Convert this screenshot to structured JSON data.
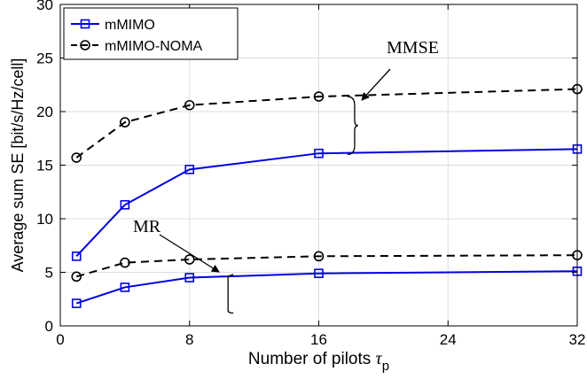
{
  "chart_data": {
    "type": "line",
    "xlabel": "Number of pilots",
    "xlabel_symbol": "τ",
    "xlabel_subscript": "p",
    "ylabel": "Average sum SE [bit/s/Hz/cell]",
    "xlim": [
      0,
      32
    ],
    "ylim": [
      0,
      30
    ],
    "xticks": [
      0,
      8,
      16,
      24,
      32
    ],
    "yticks": [
      0,
      5,
      10,
      15,
      20,
      25,
      30
    ],
    "grid": true,
    "legend_position": "top-left",
    "x": [
      1,
      4,
      8,
      16,
      32
    ],
    "series": [
      {
        "name": "mMIMO",
        "group": "MMSE",
        "values": [
          6.5,
          11.3,
          14.6,
          16.1,
          16.5
        ],
        "color": "#0000e0",
        "dash": "solid",
        "marker": "square"
      },
      {
        "name": "mMIMO-NOMA",
        "group": "MMSE",
        "values": [
          15.7,
          19.0,
          20.6,
          21.4,
          22.1
        ],
        "color": "#000000",
        "dash": "dashed",
        "marker": "circle"
      },
      {
        "name": "mMIMO",
        "group": "MR",
        "values": [
          2.1,
          3.6,
          4.5,
          4.9,
          5.1
        ],
        "color": "#0000e0",
        "dash": "solid",
        "marker": "square"
      },
      {
        "name": "mMIMO-NOMA",
        "group": "MR",
        "values": [
          4.6,
          5.9,
          6.2,
          6.5,
          6.6
        ],
        "color": "#000000",
        "dash": "dashed",
        "marker": "circle"
      }
    ],
    "legend": [
      {
        "label": "mMIMO",
        "color": "#0000e0",
        "dash": "solid",
        "marker": "square"
      },
      {
        "label": "mMIMO-NOMA",
        "color": "#000000",
        "dash": "dashed",
        "marker": "circle"
      }
    ],
    "annotations": [
      {
        "text": "MMSE",
        "arrow_to_x": 18,
        "arrow_to_y": 21.4,
        "bracket_x": 18,
        "bracket_from_y": 16.0,
        "bracket_to_y": 21.4
      },
      {
        "text": "MR",
        "arrow_to_x": 9.5,
        "arrow_to_y": 4.7,
        "bracket_x": 10,
        "bracket_from_y": 1.2,
        "bracket_to_y": 4.8
      }
    ]
  }
}
